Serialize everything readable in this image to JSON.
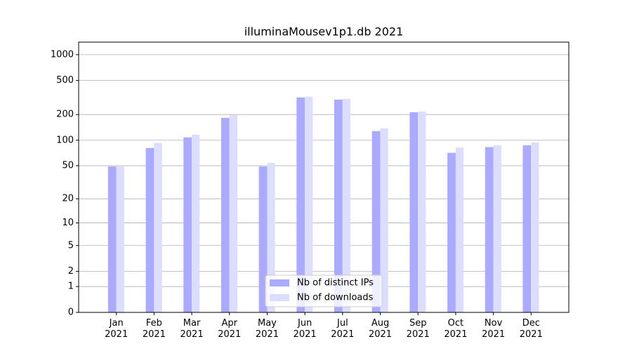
{
  "chart_data": {
    "type": "bar",
    "title": "illuminaMousev1p1.db 2021",
    "scale": "log1p",
    "categories": [
      "Jan\n2021",
      "Feb\n2021",
      "Mar\n2021",
      "Apr\n2021",
      "May\n2021",
      "Jun\n2021",
      "Jul\n2021",
      "Aug\n2021",
      "Sep\n2021",
      "Oct\n2021",
      "Nov\n2021",
      "Dec\n2021"
    ],
    "series": [
      {
        "name": "Nb of distinct IPs",
        "color": "#aaaaff",
        "values": [
          49,
          81,
          108,
          183,
          49,
          317,
          299,
          128,
          213,
          71,
          83,
          87
        ]
      },
      {
        "name": "Nb of downloads",
        "color": "#ddddff",
        "values": [
          49,
          93,
          116,
          198,
          54,
          323,
          305,
          138,
          217,
          82,
          87,
          94
        ]
      }
    ],
    "ylim": [
      0,
      1400
    ],
    "yticks": [
      0,
      1,
      2,
      5,
      10,
      20,
      50,
      100,
      200,
      500,
      1000
    ],
    "grid": true,
    "legend": "lower center"
  }
}
